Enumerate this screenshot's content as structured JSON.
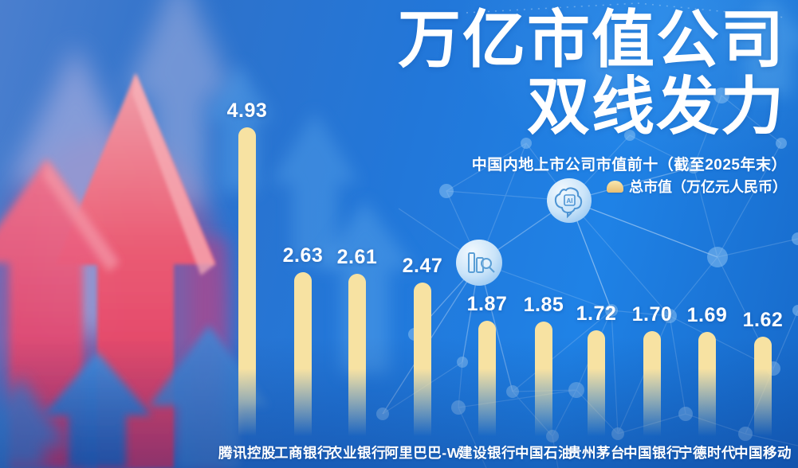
{
  "header": {
    "title_line1": "万亿市值公司",
    "title_line2": "双线发力",
    "subtitle": "中国内地上市公司市值前十（截至2025年末）",
    "legend_label": "总市值（万亿元人民币）"
  },
  "chart_data": {
    "type": "bar",
    "title": "中国内地上市公司市值前十（截至2025年末）",
    "legend": "总市值（万亿元人民币）",
    "unit": "万亿元人民币",
    "categories": [
      "腾讯控股",
      "工商银行",
      "农业银行",
      "阿里巴巴-W",
      "建设银行",
      "中国石油",
      "贵州茅台",
      "中国银行",
      "宁德时代",
      "中国移动"
    ],
    "values": [
      4.93,
      2.63,
      2.61,
      2.47,
      1.87,
      1.85,
      1.72,
      1.7,
      1.69,
      1.62
    ],
    "value_labels": [
      "4.93",
      "2.63",
      "2.61",
      "2.47",
      "1.87",
      "1.85",
      "1.72",
      "1.70",
      "1.69",
      "1.62"
    ],
    "ylim": [
      0,
      5
    ],
    "grid": false,
    "legend_position": "top-right",
    "bar_color": "#F7E2A2",
    "value_label_color": "#FFFFFF"
  },
  "icons": {
    "ai_badge": "ai-brain-chip-icon",
    "chart_badge": "bar-chart-magnifier-icon",
    "legend_swatch": "rounded-bar-swatch"
  },
  "colors": {
    "background_blue": "#1B77DC",
    "accent_red": "#E8436B",
    "accent_purple": "#97A5DC",
    "bar_fill": "#F7E2A2",
    "text": "#FFFFFF"
  }
}
